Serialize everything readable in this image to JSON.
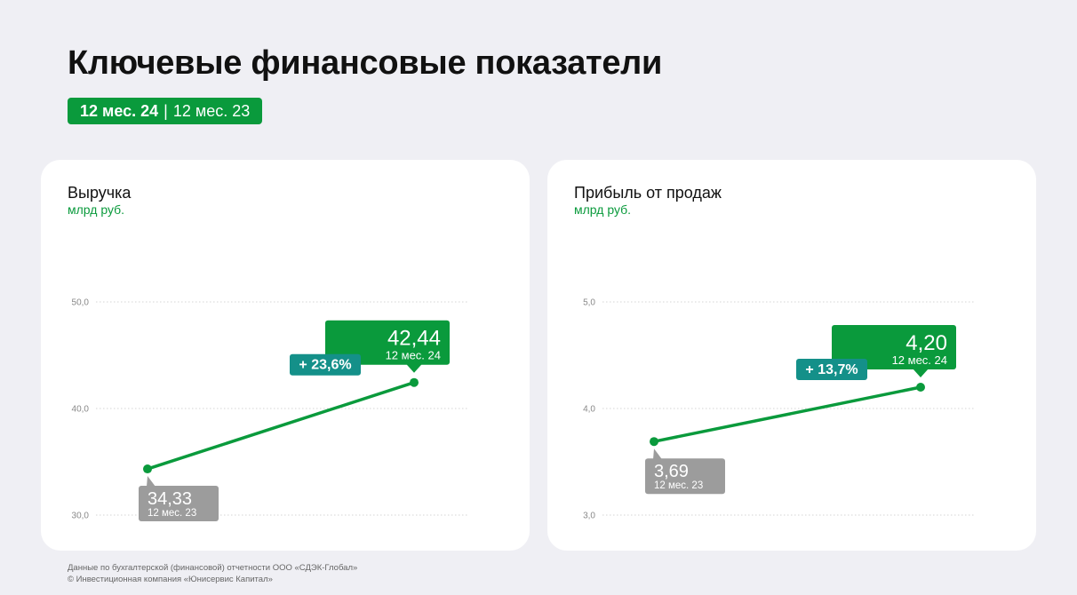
{
  "header": {
    "title": "Ключевые финансовые показатели",
    "period_current": "12 мес. 24",
    "period_separator": "|",
    "period_previous": "12 мес. 23"
  },
  "colors": {
    "brand_green": "#0a9a3c",
    "growth_teal": "#149089",
    "previous_gray": "#9c9c9c",
    "background": "#efeff4"
  },
  "chart_data": [
    {
      "type": "line",
      "title": "Выручка",
      "subtitle": "млрд руб.",
      "y_ticks": [
        "50,0",
        "40,0",
        "30,0"
      ],
      "ylim": [
        30,
        50
      ],
      "grid": true,
      "points": [
        {
          "period": "12 мес. 23",
          "value": 34.33,
          "label": "34,33"
        },
        {
          "period": "12 мес. 24",
          "value": 42.44,
          "label": "42,44"
        }
      ],
      "change_label": "+ 23,6%"
    },
    {
      "type": "line",
      "title": "Прибыль от продаж",
      "subtitle": "млрд руб.",
      "y_ticks": [
        "5,0",
        "4,0",
        "3,0"
      ],
      "ylim": [
        3,
        5
      ],
      "grid": true,
      "points": [
        {
          "period": "12 мес. 23",
          "value": 3.69,
          "label": "3,69"
        },
        {
          "period": "12 мес. 24",
          "value": 4.2,
          "label": "4,20"
        }
      ],
      "change_label": "+ 13,7%"
    }
  ],
  "footer": {
    "line1": "Данные по бухгалтерской (финансовой) отчетности ООО «СДЭК-Глобал»",
    "line2": "© Инвестиционная компания «Юнисервис Капитал»"
  }
}
